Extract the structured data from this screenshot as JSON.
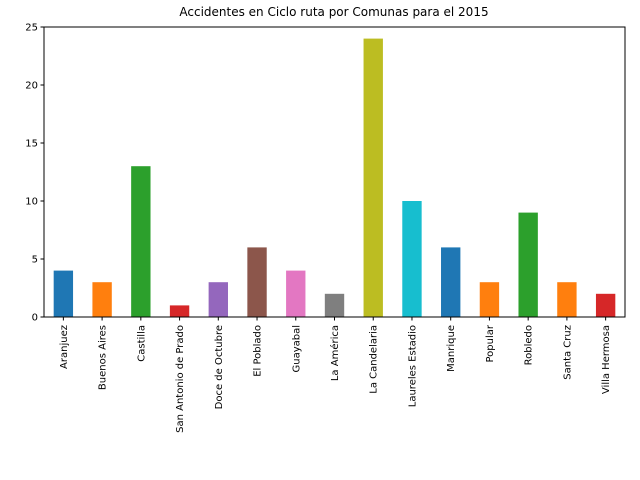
{
  "chart_data": {
    "type": "bar",
    "title": "Accidentes en Ciclo ruta por Comunas para el 2015",
    "xlabel": "",
    "ylabel": "",
    "ylim": [
      0,
      25
    ],
    "yticks": [
      0,
      5,
      10,
      15,
      20,
      25
    ],
    "categories": [
      "Aranjuez",
      "Buenos Aires",
      "Castilla",
      "San Antonio de Prado",
      "Doce de Octubre",
      "El Poblado",
      "Guayabal",
      "La América",
      "La Candelaria",
      "Laureles Estadio",
      "Manrique",
      "Popular",
      "Robledo",
      "Santa Cruz",
      "Villa Hermosa"
    ],
    "values": [
      4,
      3,
      13,
      1,
      3,
      6,
      4,
      2,
      24,
      10,
      6,
      3,
      9,
      3,
      2
    ],
    "colors": [
      "#1f77b4",
      "#ff7f0e",
      "#2ca02c",
      "#d62728",
      "#9467bd",
      "#8c564b",
      "#e377c2",
      "#7f7f7f",
      "#bcbd22",
      "#17becf",
      "#1f77b4",
      "#ff7f0e",
      "#2ca02c",
      "#ff7f0e",
      "#d62728"
    ]
  }
}
